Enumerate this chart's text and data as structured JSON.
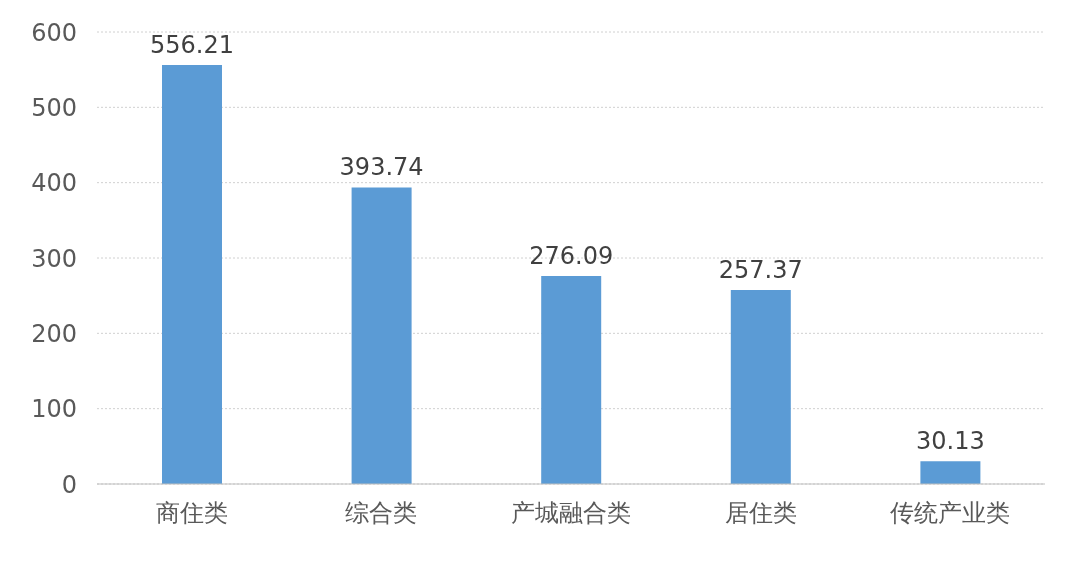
{
  "chart_data": {
    "type": "bar",
    "categories": [
      "商住类",
      "综合类",
      "产城融合类",
      "居住类",
      "传统产业类"
    ],
    "values": [
      556.21,
      393.74,
      276.09,
      257.37,
      30.13
    ],
    "color": "#5b9bd5",
    "ylim": [
      0,
      600
    ],
    "yticks": [
      0,
      100,
      200,
      300,
      400,
      500,
      600
    ],
    "grid": "y",
    "data_labels": true
  }
}
